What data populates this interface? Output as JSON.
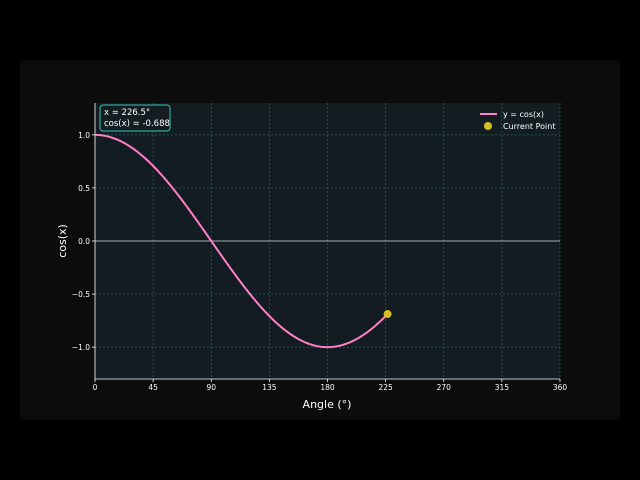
{
  "chart_data": {
    "type": "line",
    "xlabel": "Angle (°)",
    "ylabel": "cos(x)",
    "xlim": [
      0,
      360
    ],
    "ylim": [
      -1.3,
      1.3
    ],
    "xticks": [
      0,
      45,
      90,
      135,
      180,
      225,
      270,
      315,
      360
    ],
    "yticks": [
      -1.0,
      -0.5,
      0.0,
      0.5,
      1.0
    ],
    "xtick_labels": [
      "0",
      "45",
      "90",
      "135",
      "180",
      "225",
      "270",
      "315",
      "360"
    ],
    "ytick_labels": [
      "−1.0",
      "−0.5",
      "0.0",
      "0.5",
      "1.0"
    ],
    "grid": true,
    "legend_position": "top-right",
    "series": [
      {
        "name": "y = cos(x)",
        "function": "cos",
        "x_range_deg": [
          0,
          226.5
        ],
        "color": "#ff7fc8"
      }
    ],
    "current_point": {
      "name": "Current Point",
      "x": 226.5,
      "y": -0.688,
      "color": "#d4c020"
    },
    "annotation": {
      "line1": "x = 226.5°",
      "line2": "cos(x) = -0.688"
    },
    "colors": {
      "figure_bg": "#0c0c0c",
      "axes_bg": "#121c21",
      "grid": "#1c6d6b",
      "zero_line": "#cfd4d6",
      "text": "#ffffff",
      "annotation_border": "#38c4b8"
    }
  }
}
